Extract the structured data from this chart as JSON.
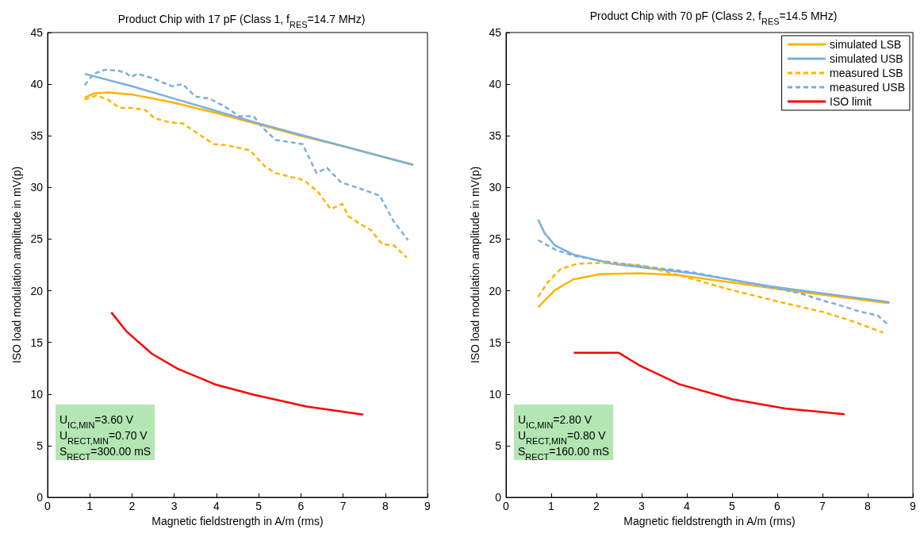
{
  "chart_data": [
    {
      "type": "line",
      "title": "Product Chip with 17 pF (Class 1, f$_{RES}$=14.7 MHz)",
      "xlabel": "Magnetic fieldstrength in A/m (rms)",
      "ylabel": "ISO load modulation amplitude in mV(p)",
      "xlim": [
        0,
        9
      ],
      "xticks": [
        0,
        1,
        2,
        3,
        4,
        5,
        6,
        7,
        8,
        9
      ],
      "ylim": [
        0,
        45
      ],
      "yticks": [
        0,
        5,
        10,
        15,
        20,
        25,
        30,
        35,
        40,
        45
      ],
      "grid": false,
      "legend": false,
      "annotations": [
        "U$_{IC,MIN}$=3.60 V",
        "U$_{RECT,MIN}$=0.70 V",
        "S$_{RECT}$=300.00 mS"
      ],
      "series": [
        {
          "color": "#ffb300",
          "line_style": "solid",
          "x": [
            0.88,
            1.1,
            1.43,
            2,
            3,
            4,
            5,
            6,
            7,
            8,
            8.66
          ],
          "values": [
            38.7,
            39.1,
            39.2,
            39.0,
            38.2,
            37.2,
            36.1,
            35.0,
            34.0,
            32.9,
            32.2
          ]
        },
        {
          "color": "#7aaede",
          "line_style": "solid",
          "x": [
            0.88,
            2,
            3,
            4,
            5,
            6,
            7,
            8,
            8.66
          ],
          "values": [
            41.0,
            39.8,
            38.6,
            37.4,
            36.2,
            35.1,
            34.0,
            32.9,
            32.2
          ]
        },
        {
          "color": "#ffb300",
          "line_style": "dashed",
          "x": [
            0.88,
            1.16,
            1.43,
            1.71,
            1.98,
            2.32,
            2.53,
            2.9,
            3.2,
            3.93,
            4.24,
            4.79,
            5.16,
            5.4,
            6.07,
            6.4,
            6.71,
            6.98,
            7.13,
            7.35,
            7.65,
            7.93,
            8.2,
            8.51
          ],
          "values": [
            38.5,
            38.9,
            38.5,
            37.7,
            37.7,
            37.5,
            36.7,
            36.3,
            36.2,
            34.2,
            34.1,
            33.6,
            32.0,
            31.4,
            30.7,
            29.6,
            27.9,
            28.4,
            27.2,
            26.6,
            25.9,
            24.5,
            24.4,
            23.2
          ]
        },
        {
          "color": "#7aaede",
          "line_style": "dashed",
          "x": [
            0.88,
            1.09,
            1.37,
            1.67,
            1.85,
            1.98,
            2.13,
            2.47,
            2.95,
            3.2,
            3.5,
            3.84,
            4.17,
            4.54,
            4.88,
            5.09,
            5.4,
            6.04,
            6.37,
            6.62,
            6.95,
            7.47,
            7.87,
            8.2,
            8.54
          ],
          "values": [
            39.9,
            41.0,
            41.4,
            41.3,
            41.1,
            40.7,
            41.0,
            40.6,
            39.8,
            40.0,
            38.8,
            38.6,
            37.9,
            36.9,
            36.9,
            35.8,
            34.6,
            34.2,
            31.4,
            31.9,
            30.5,
            29.8,
            29.2,
            26.7,
            24.9
          ]
        },
        {
          "color": "#ff0000",
          "line_style": "solid",
          "x": [
            1.51,
            1.86,
            2.47,
            3.08,
            3.99,
            4.91,
            6.13,
            7.48
          ],
          "values": [
            17.9,
            16.1,
            13.9,
            12.45,
            10.9,
            9.9,
            8.8,
            8.0
          ]
        }
      ]
    },
    {
      "type": "line",
      "title": "Product Chip with 70 pF (Class 2, f$_{RES}$=14.5 MHz)",
      "xlabel": "Magnetic fieldstrength in A/m (rms)",
      "ylabel": "ISO load modulation amplitude in mV(p)",
      "xlim": [
        0,
        9
      ],
      "xticks": [
        0,
        1,
        2,
        3,
        4,
        5,
        6,
        7,
        8,
        9
      ],
      "ylim": [
        0,
        45
      ],
      "yticks": [
        0,
        5,
        10,
        15,
        20,
        25,
        30,
        35,
        40,
        45
      ],
      "grid": false,
      "legend": "top right",
      "annotations": [
        "U$_{IC,MIN}$=2.80 V",
        "U$_{RECT,MIN}$=0.80 V",
        "S$_{RECT}$=160.00 mS"
      ],
      "series": [
        {
          "name": "simulated LSB",
          "color": "#ffb300",
          "line_style": "solid",
          "x": [
            0.71,
            1.08,
            1.49,
            2.07,
            2.95,
            3.83,
            5.0,
            6.46,
            8.48
          ],
          "values": [
            18.4,
            20.05,
            21.1,
            21.6,
            21.7,
            21.5,
            20.8,
            19.9,
            18.8
          ]
        },
        {
          "name": "simulated USB",
          "color": "#7aaede",
          "line_style": "solid",
          "x": [
            0.71,
            0.85,
            1.08,
            1.49,
            2.37,
            4.12,
            5.88,
            8.48
          ],
          "values": [
            26.9,
            25.6,
            24.4,
            23.5,
            22.6,
            21.7,
            20.4,
            18.9
          ]
        },
        {
          "name": "measured LSB",
          "color": "#ffb300",
          "line_style": "dashed",
          "x": [
            0.71,
            0.92,
            1.21,
            1.56,
            2.07,
            2.95,
            3.83,
            5.0,
            6.17,
            7.05,
            7.63,
            8.34
          ],
          "values": [
            19.4,
            20.8,
            22.1,
            22.6,
            22.7,
            22.5,
            21.5,
            20.05,
            18.8,
            17.9,
            17.1,
            15.95
          ]
        },
        {
          "name": "measured USB",
          "color": "#7aaede",
          "line_style": "dashed",
          "x": [
            0.71,
            1.08,
            1.49,
            2.07,
            2.95,
            4.12,
            5.29,
            6.46,
            7.05,
            7.46,
            7.81,
            8.22,
            8.46
          ],
          "values": [
            24.9,
            24.0,
            23.4,
            22.9,
            22.4,
            21.8,
            20.8,
            19.8,
            19.0,
            18.5,
            18.0,
            17.6,
            16.7
          ]
        },
        {
          "name": "ISO limit",
          "color": "#ff0000",
          "line_style": "solid",
          "x": [
            1.5,
            2.49,
            2.96,
            3.83,
            5.0,
            6.17,
            7.49
          ],
          "values": [
            14.0,
            14.0,
            12.75,
            10.95,
            9.5,
            8.6,
            8.05
          ]
        }
      ]
    }
  ]
}
